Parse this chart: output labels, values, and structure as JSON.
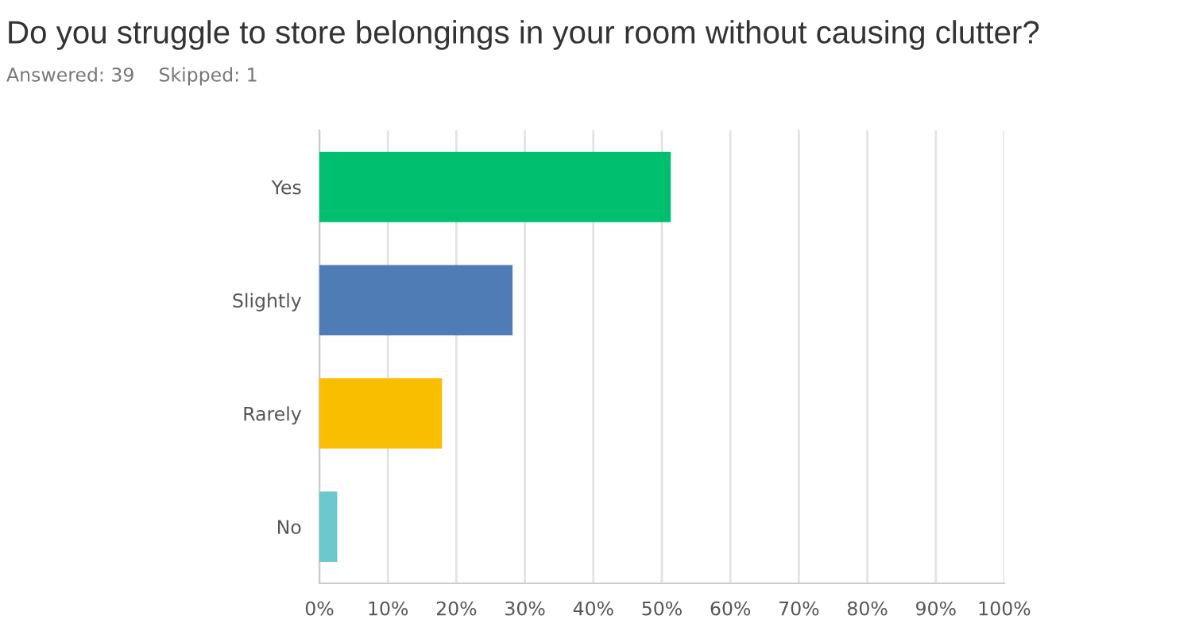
{
  "chart_data": {
    "type": "bar",
    "orientation": "horizontal",
    "title": "Do you struggle to store belongings in your room without causing clutter?",
    "subtitle": "Answered: 39    Skipped: 1",
    "categories": [
      "Yes",
      "Slightly",
      "Rarely",
      "No"
    ],
    "values": [
      51.3,
      28.2,
      17.9,
      2.6
    ],
    "colors": [
      "#00bf6f",
      "#507cb6",
      "#f9be00",
      "#6bc8cd"
    ],
    "xlim": [
      0,
      100
    ],
    "xticks": [
      {
        "value": 0,
        "label": "0%"
      },
      {
        "value": 10,
        "label": "10%"
      },
      {
        "value": 20,
        "label": "20%"
      },
      {
        "value": 30,
        "label": "30%"
      },
      {
        "value": 40,
        "label": "40%"
      },
      {
        "value": 50,
        "label": "50%"
      },
      {
        "value": 60,
        "label": "60%"
      },
      {
        "value": 70,
        "label": "70%"
      },
      {
        "value": 80,
        "label": "80%"
      },
      {
        "value": 90,
        "label": "90%"
      },
      {
        "value": 100,
        "label": "100%"
      }
    ],
    "grid": "x",
    "legend": false
  }
}
